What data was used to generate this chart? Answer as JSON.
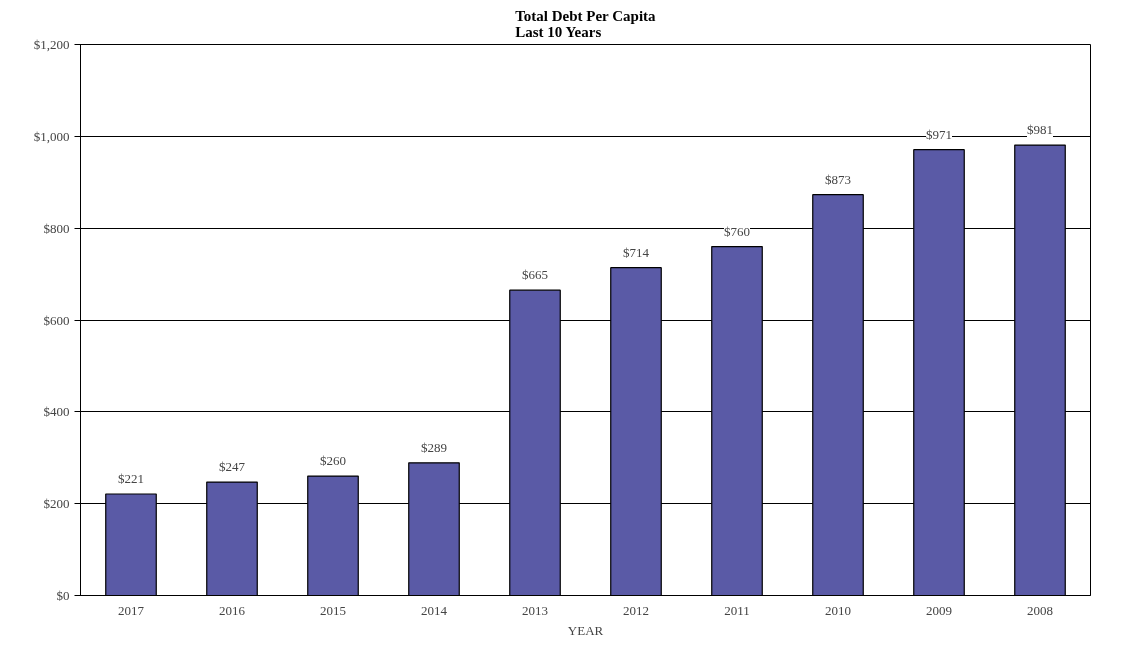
{
  "chart_data": {
    "type": "bar",
    "title": "Total Debt Per Capita\nLast 10 Years",
    "xlabel": "YEAR",
    "categories": [
      "2017",
      "2016",
      "2015",
      "2014",
      "2013",
      "2012",
      "2011",
      "2010",
      "2009",
      "2008"
    ],
    "values": [
      221,
      247,
      260,
      289,
      665,
      714,
      760,
      873,
      971,
      981
    ],
    "value_labels": [
      "$221",
      "$247",
      "$260",
      "$289",
      "$665",
      "$714",
      "$760",
      "$873",
      "$971",
      "$981"
    ],
    "color": "#5a5aa6",
    "ylim": [
      0,
      1200
    ],
    "yticks": [
      {
        "value": 0,
        "label": "$0"
      },
      {
        "value": 200,
        "label": "$200"
      },
      {
        "value": 400,
        "label": "$400"
      },
      {
        "value": 600,
        "label": "$600"
      },
      {
        "value": 800,
        "label": "$800"
      },
      {
        "value": 1000,
        "label": "$1,000"
      },
      {
        "value": 1200,
        "label": "$1,200"
      }
    ],
    "grid": "y"
  }
}
